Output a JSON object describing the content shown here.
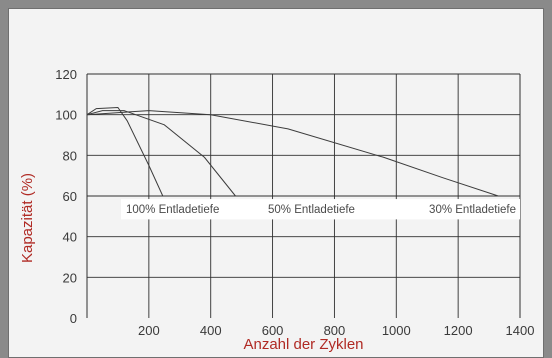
{
  "chart_data": {
    "type": "line",
    "title": "",
    "xlabel": "Anzahl der Zyklen",
    "ylabel": "Kapazität (%)",
    "xlim": [
      0,
      1400
    ],
    "ylim": [
      0,
      120
    ],
    "x_ticks": [
      200,
      400,
      600,
      800,
      1000,
      1200,
      1400
    ],
    "y_ticks": [
      0,
      20,
      40,
      60,
      80,
      100,
      120
    ],
    "grid": true,
    "colors": {
      "line": "#3c3c3c",
      "grid": "#2f2f2f",
      "axis_title": "#b02a24",
      "label_band": "#ffffff",
      "plot_background": "#f3f3f3",
      "outer_background": "#8a8a8a"
    },
    "series": [
      {
        "name": "100% Entladetiefe",
        "x": [
          0,
          30,
          100,
          130,
          200,
          245
        ],
        "y": [
          100,
          103,
          103.5,
          97,
          75,
          60
        ]
      },
      {
        "name": "50% Entladetiefe",
        "x": [
          0,
          50,
          120,
          250,
          380,
          480
        ],
        "y": [
          100,
          102,
          102,
          95,
          79,
          60
        ]
      },
      {
        "name": "30% Entladetiefe",
        "x": [
          0,
          200,
          400,
          650,
          960,
          1150,
          1330
        ],
        "y": [
          100,
          102,
          100,
          93,
          79,
          69,
          60
        ]
      }
    ]
  }
}
